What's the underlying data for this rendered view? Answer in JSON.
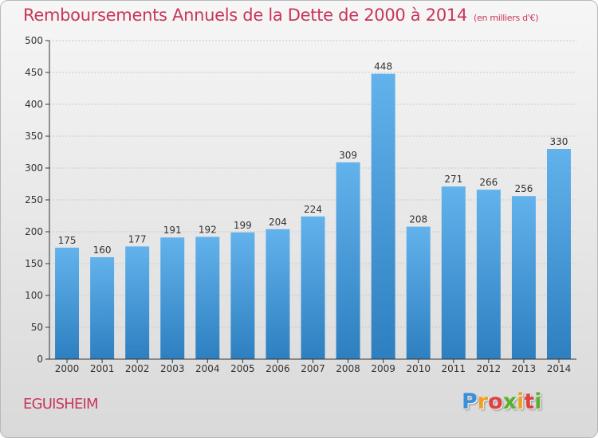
{
  "title": "Remboursements Annuels de la Dette de 2000 à 2014",
  "subtitle": "(en milliers d'€)",
  "commune": "EGUISHEIM",
  "logo": {
    "text": "Proxiti",
    "colors": [
      "#3a8fd8",
      "#f0a020",
      "#e04040",
      "#58b030"
    ]
  },
  "colors": {
    "title": "#c8365a",
    "bar_top": "#62b2ec",
    "bar_bottom": "#2d7fc0",
    "axis": "#333333"
  },
  "chart_data": {
    "type": "bar",
    "title": "Remboursements Annuels de la Dette de 2000 à 2014",
    "xlabel": "",
    "ylabel": "",
    "categories": [
      "2000",
      "2001",
      "2002",
      "2003",
      "2004",
      "2005",
      "2006",
      "2007",
      "2008",
      "2009",
      "2010",
      "2011",
      "2012",
      "2013",
      "2014"
    ],
    "values": [
      175,
      160,
      177,
      191,
      192,
      199,
      204,
      224,
      309,
      448,
      208,
      271,
      266,
      256,
      330
    ],
    "ylim": [
      0,
      500
    ],
    "yticks": [
      0,
      50,
      100,
      150,
      200,
      250,
      300,
      350,
      400,
      450,
      500
    ],
    "grid": true,
    "legend": "none"
  }
}
